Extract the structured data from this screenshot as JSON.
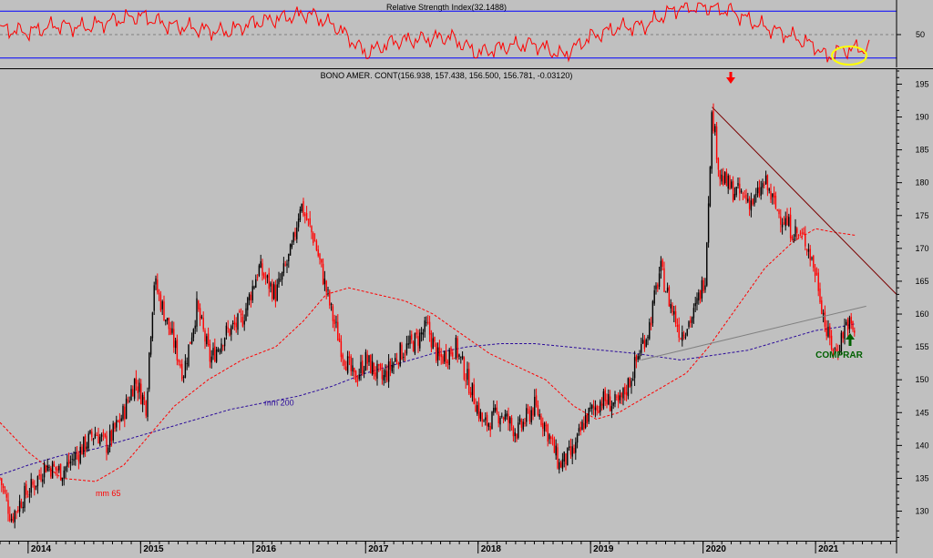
{
  "rsi_panel": {
    "title": "Relative Strength Index(32.1488)",
    "tick_labels": [
      "50"
    ],
    "tick_values": [
      50
    ],
    "upper_line": 70,
    "lower_line": 30,
    "ylim": [
      22,
      78
    ]
  },
  "price_panel": {
    "title": "BONO AMER. CONT(156.938, 157.438, 156.500, 156.781, -0.03120)",
    "y_ticks": [
      130,
      135,
      140,
      145,
      150,
      155,
      160,
      165,
      170,
      175,
      180,
      185,
      190,
      195
    ],
    "ylim": [
      125.5,
      197
    ],
    "x_labels": [
      "2014",
      "2015",
      "2016",
      "2017",
      "2018",
      "2019",
      "2020",
      "2021"
    ],
    "x_label_positions": [
      2014.0,
      2015.0,
      2016.0,
      2017.0,
      2018.0,
      2019.0,
      2020.0,
      2021.0
    ],
    "xlim": [
      2013.75,
      2021.72
    ],
    "annotations": {
      "mm200_label": "mm 200",
      "mm65_label": "mm 65",
      "buy_label": "COMPRAR"
    },
    "colors": {
      "price": "#ff0000",
      "mm65": "#ff0000",
      "mm200": "#2a0a9a",
      "trendline_down": "#7a0000",
      "trendline_up": "#808080",
      "buy_arrow": "#006000",
      "sell_arrow": "#ff0000",
      "rsi_circle": "#ffff00"
    }
  },
  "chart_data": [
    {
      "type": "line",
      "name": "rsi",
      "title": "Relative Strength Index(32.1488)",
      "ylim": [
        22,
        78
      ],
      "x": [
        2013.75,
        2014.0,
        2014.25,
        2014.5,
        2014.75,
        2015.0,
        2015.25,
        2015.5,
        2015.75,
        2016.0,
        2016.25,
        2016.5,
        2016.75,
        2017.0,
        2017.25,
        2017.5,
        2017.75,
        2018.0,
        2018.25,
        2018.5,
        2018.75,
        2019.0,
        2019.25,
        2019.5,
        2019.75,
        2020.0,
        2020.25,
        2020.5,
        2020.75,
        2021.0,
        2021.1,
        2021.2,
        2021.35
      ],
      "y": [
        55,
        52,
        58,
        56,
        62,
        66,
        58,
        55,
        52,
        60,
        64,
        68,
        56,
        34,
        44,
        46,
        48,
        34,
        40,
        42,
        32,
        48,
        56,
        58,
        72,
        74,
        70,
        58,
        50,
        40,
        30,
        36,
        38
      ]
    },
    {
      "type": "line",
      "name": "price",
      "ylim": [
        125.5,
        197
      ],
      "x": [
        2013.75,
        2013.85,
        2013.95,
        2014.05,
        2014.15,
        2014.3,
        2014.45,
        2014.6,
        2014.7,
        2014.85,
        2014.95,
        2015.05,
        2015.08,
        2015.12,
        2015.25,
        2015.38,
        2015.5,
        2015.62,
        2015.75,
        2015.9,
        2016.05,
        2016.2,
        2016.35,
        2016.42,
        2016.55,
        2016.7,
        2016.8,
        2016.9,
        2017.0,
        2017.15,
        2017.3,
        2017.45,
        2017.55,
        2017.65,
        2017.8,
        2017.95,
        2018.05,
        2018.2,
        2018.35,
        2018.5,
        2018.6,
        2018.72,
        2018.85,
        2018.95,
        2019.1,
        2019.25,
        2019.35,
        2019.45,
        2019.52,
        2019.62,
        2019.7,
        2019.8,
        2019.92,
        2020.02,
        2020.08,
        2020.15,
        2020.25,
        2020.35,
        2020.45,
        2020.55,
        2020.65,
        2020.78,
        2020.92,
        2021.02,
        2021.1,
        2021.18,
        2021.28,
        2021.35
      ],
      "y": [
        135,
        129,
        132,
        134,
        137,
        136,
        139,
        142,
        140,
        145,
        150,
        146,
        155,
        165,
        158,
        151,
        161,
        153,
        157,
        159,
        167,
        163,
        170,
        177,
        171,
        160,
        154,
        150,
        153,
        150,
        154,
        156,
        158,
        153,
        155,
        148,
        143,
        145,
        142,
        146,
        143,
        137,
        139,
        144,
        147,
        146,
        150,
        155,
        158,
        167,
        162,
        157,
        160,
        166,
        191,
        181,
        179,
        178,
        177,
        180,
        176,
        173,
        171,
        165,
        157,
        154,
        159,
        157
      ]
    },
    {
      "type": "line",
      "name": "mm 65",
      "ylim": [
        125.5,
        197
      ],
      "x": [
        2013.75,
        2014.0,
        2014.3,
        2014.6,
        2014.85,
        2015.05,
        2015.3,
        2015.6,
        2015.9,
        2016.2,
        2016.45,
        2016.65,
        2016.85,
        2017.1,
        2017.35,
        2017.6,
        2017.85,
        2018.1,
        2018.35,
        2018.6,
        2018.85,
        2019.05,
        2019.25,
        2019.45,
        2019.65,
        2019.85,
        2020.05,
        2020.3,
        2020.55,
        2020.8,
        2021.0,
        2021.15,
        2021.35
      ],
      "y": [
        143.5,
        139,
        135,
        134.5,
        137,
        141,
        146,
        150,
        153,
        155,
        159,
        163,
        164,
        163,
        162,
        160,
        157,
        154,
        152,
        150,
        146,
        144,
        145,
        147,
        149,
        151,
        155,
        161,
        167,
        171,
        173,
        172.5,
        172
      ]
    },
    {
      "type": "line",
      "name": "mm 200",
      "ylim": [
        125.5,
        197
      ],
      "x": [
        2013.75,
        2014.0,
        2014.3,
        2014.6,
        2014.9,
        2015.2,
        2015.5,
        2015.8,
        2016.1,
        2016.4,
        2016.7,
        2017.0,
        2017.3,
        2017.6,
        2017.9,
        2018.2,
        2018.5,
        2018.8,
        2019.1,
        2019.4,
        2019.6,
        2019.8,
        2020.0,
        2020.2,
        2020.4,
        2020.6,
        2020.8,
        2021.0,
        2021.2,
        2021.35
      ],
      "y": [
        135.5,
        137,
        138.5,
        139.5,
        141,
        142.5,
        144,
        145.5,
        146.5,
        147.5,
        149,
        151,
        152.5,
        154,
        155,
        155.5,
        155.5,
        155,
        154.5,
        154,
        153.5,
        153,
        153.5,
        154,
        154.5,
        155.5,
        156.5,
        157.5,
        158,
        158.5
      ]
    },
    {
      "type": "line",
      "name": "trendline-down",
      "x": [
        2020.08,
        2021.72
      ],
      "y": [
        191.5,
        163
      ]
    },
    {
      "type": "line",
      "name": "trendline-up",
      "x": [
        2019.45,
        2021.45
      ],
      "y": [
        153,
        161.2
      ]
    }
  ]
}
